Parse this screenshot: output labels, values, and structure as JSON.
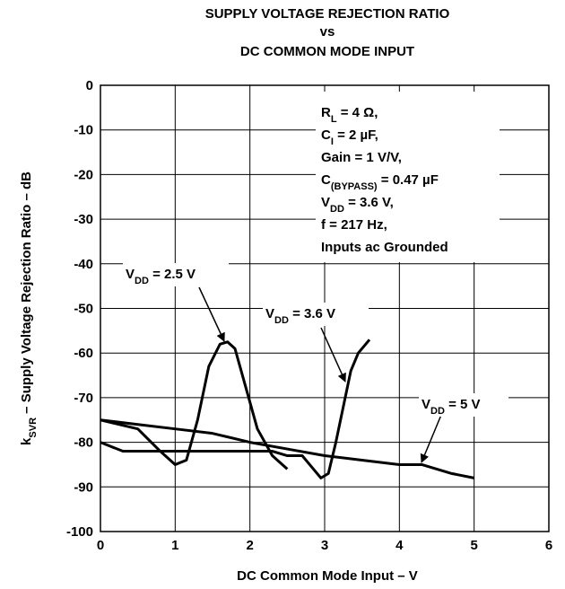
{
  "chart_data": {
    "type": "line",
    "title": [
      "SUPPLY VOLTAGE REJECTION RATIO",
      "vs",
      "DC COMMON MODE INPUT"
    ],
    "x_label": "DC Common Mode Input – V",
    "y_label": [
      {
        "text": "k"
      },
      {
        "text": "SVR",
        "sub": true
      },
      {
        "text": " – Supply Voltage Rejection Ratio – dB"
      }
    ],
    "xlim": [
      0,
      6
    ],
    "xticks": [
      0,
      1,
      2,
      3,
      4,
      5,
      6
    ],
    "ylim": [
      -100,
      0
    ],
    "yticks": [
      0,
      -10,
      -20,
      -30,
      -40,
      -50,
      -60,
      -70,
      -80,
      -90,
      -100
    ],
    "grid": true,
    "conditions": [
      [
        {
          "text": "R"
        },
        {
          "text": "L",
          "sub": true
        },
        {
          "text": " = 4 Ω,"
        }
      ],
      [
        {
          "text": "C"
        },
        {
          "text": "I",
          "sub": true
        },
        {
          "text": " = 2 µF,"
        }
      ],
      [
        {
          "text": "Gain = 1 V/V,"
        }
      ],
      [
        {
          "text": "C"
        },
        {
          "text": "(BYPASS)",
          "sub": true
        },
        {
          "text": " = 0.47 µF"
        }
      ],
      [
        {
          "text": "V"
        },
        {
          "text": "DD",
          "sub": true
        },
        {
          "text": " = 3.6 V,"
        }
      ],
      [
        {
          "text": "f = 217 Hz,"
        }
      ],
      [
        {
          "text": "Inputs ac Grounded"
        }
      ]
    ],
    "series": [
      {
        "label": [
          {
            "text": "V"
          },
          {
            "text": "DD",
            "sub": true
          },
          {
            "text": " = 2.5 V"
          }
        ],
        "color": "#000000",
        "x": [
          0,
          0.5,
          0.8,
          1.0,
          1.15,
          1.3,
          1.45,
          1.6,
          1.7,
          1.8,
          1.95,
          2.1,
          2.3,
          2.5
        ],
        "values": [
          -75,
          -77,
          -82,
          -85,
          -84,
          -75,
          -63,
          -58,
          -57.5,
          -59,
          -68,
          -77,
          -83,
          -86
        ]
      },
      {
        "label": [
          {
            "text": "V"
          },
          {
            "text": "DD",
            "sub": true
          },
          {
            "text": " = 3.6 V"
          }
        ],
        "color": "#000000",
        "x": [
          0,
          0.3,
          1.0,
          1.5,
          2.3,
          2.5,
          2.7,
          2.85,
          2.95,
          3.05,
          3.15,
          3.25,
          3.35,
          3.45,
          3.6
        ],
        "values": [
          -80,
          -82,
          -82,
          -82,
          -82,
          -83,
          -83,
          -86,
          -88,
          -87,
          -80,
          -72,
          -64,
          -60,
          -57
        ]
      },
      {
        "label": [
          {
            "text": "V"
          },
          {
            "text": "DD",
            "sub": true
          },
          {
            "text": " = 5 V"
          }
        ],
        "color": "#000000",
        "x": [
          0,
          0.5,
          1.0,
          1.5,
          2.0,
          2.5,
          3.0,
          3.5,
          4.0,
          4.3,
          4.5,
          4.7,
          5.0
        ],
        "values": [
          -75,
          -76,
          -77,
          -78,
          -80,
          -81.5,
          -83,
          -84,
          -85,
          -85,
          -86,
          -87,
          -88
        ]
      }
    ]
  }
}
